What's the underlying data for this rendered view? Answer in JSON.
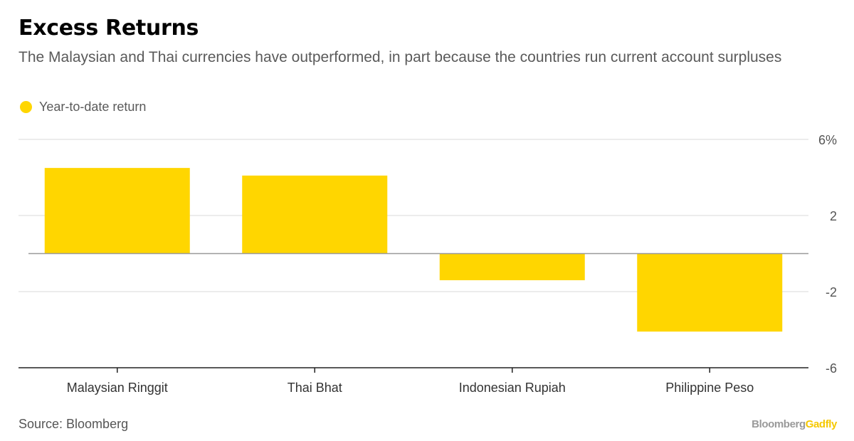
{
  "header": {
    "title": "Excess Returns",
    "subtitle": "The Malaysian and Thai currencies have outperformed, in part because the countries run current account surpluses"
  },
  "legend": {
    "label": "Year-to-date return",
    "color": "#ffd600"
  },
  "footer": {
    "source": "Source: Bloomberg",
    "brand_part1": "Bloomberg",
    "brand_part2": "Gadfly"
  },
  "chart_data": {
    "type": "bar",
    "categories": [
      "Malaysian Ringgit",
      "Thai Bhat",
      "Indonesian Rupiah",
      "Philippine Peso"
    ],
    "series": [
      {
        "name": "Year-to-date return",
        "values": [
          4.5,
          4.1,
          -1.4,
          -4.1
        ],
        "color": "#ffd600"
      }
    ],
    "ylim": [
      -6,
      6
    ],
    "y_ticks": [
      6,
      2,
      -2,
      -6
    ],
    "y_tick_labels": [
      "6%",
      "2",
      "-2",
      "-6"
    ],
    "grid": true,
    "y_axis_position": "right",
    "legend_position": "top-left"
  }
}
